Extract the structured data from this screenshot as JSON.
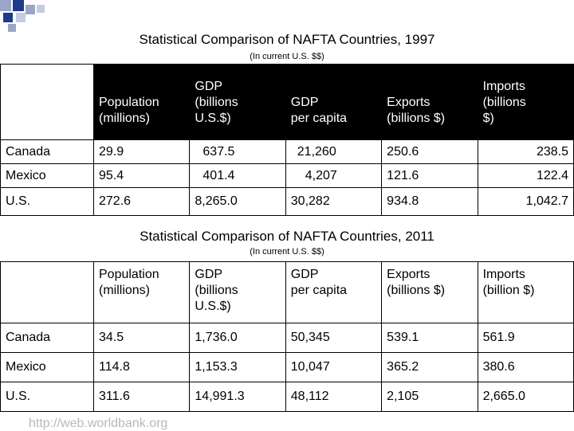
{
  "table_1997": {
    "title": "Statistical Comparison of NAFTA Countries, 1997",
    "subtitle": "(In current U.S. $$)",
    "headers": [
      "Population\n(millions)",
      "GDP\n(billions\nU.S.$)",
      "GDP\nper capita",
      "Exports\n(billions $)",
      "Imports\n(billions\n$)"
    ],
    "rows": [
      {
        "country": "Canada",
        "values": [
          "29.9",
          "637.5",
          "21,260",
          "250.6",
          "238.5"
        ]
      },
      {
        "country": "Mexico",
        "values": [
          "95.4",
          "401.4",
          "4,207",
          "121.6",
          "122.4"
        ]
      },
      {
        "country": "U.S.",
        "values": [
          "272.6",
          "8,265.0",
          "30,282",
          "934.8",
          "1,042.7"
        ]
      }
    ]
  },
  "table_2011": {
    "title": "Statistical Comparison of NAFTA Countries, 2011",
    "subtitle": "(In current U.S. $$)",
    "headers": [
      "Population\n(millions)",
      "GDP\n(billions\nU.S.$)",
      "GDP\nper capita",
      "Exports\n(billions $)",
      "Imports\n(billion $)"
    ],
    "rows": [
      {
        "country": "Canada",
        "values": [
          "34.5",
          "1,736.0",
          "50,345",
          "539.1",
          "561.9"
        ]
      },
      {
        "country": "Mexico",
        "values": [
          "114.8",
          "1,153.3",
          "10,047",
          "365.2",
          "380.6"
        ]
      },
      {
        "country": "U.S.",
        "values": [
          "311.6",
          "14,991.3",
          "48,112",
          "2,105",
          "2,665.0"
        ]
      }
    ]
  },
  "source": "http://web.worldbank.org",
  "colors": {
    "header_bg": "#000000",
    "header_text": "#ffffff",
    "deco": "#1f3a8a",
    "source_text": "#b8b8b8"
  }
}
